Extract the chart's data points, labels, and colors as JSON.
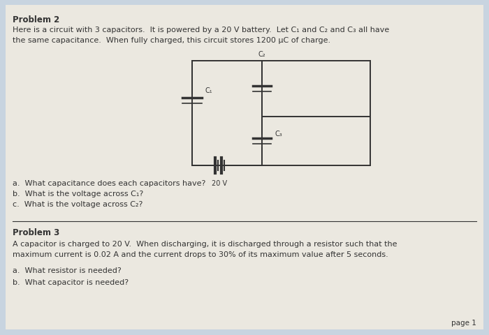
{
  "bg_color": "#c8d4e0",
  "paper_color": "#ebe8e0",
  "title_problem2": "Problem 2",
  "text_problem2_line1": "Here is a circuit with 3 capacitors.  It is powered by a 20 V battery.  Let C₁ and C₂ and C₃ all have",
  "text_problem2_line2": "the same capacitance.  When fully charged, this circuit stores 1200 μC of charge.",
  "questions_2": [
    "a.  What capacitance does each capacitors have?",
    "b.  What is the voltage across C₁?",
    "c.  What is the voltage across C₂?"
  ],
  "title_problem3": "Problem 3",
  "text_problem3_line1": "A capacitor is charged to 20 V.  When discharging, it is discharged through a resistor such that the",
  "text_problem3_line2": "maximum current is 0.02 A and the current drops to 30% of its maximum value after 5 seconds.",
  "questions_3": [
    "a.  What resistor is needed?",
    "b.  What capacitor is needed?"
  ],
  "page_label": "page 1",
  "circuit": {
    "battery_label": "20 V",
    "C1_label": "C₁",
    "C2_label": "C₂",
    "C3_label": "C₃"
  },
  "line_color": "#333333",
  "text_color": "#333333"
}
